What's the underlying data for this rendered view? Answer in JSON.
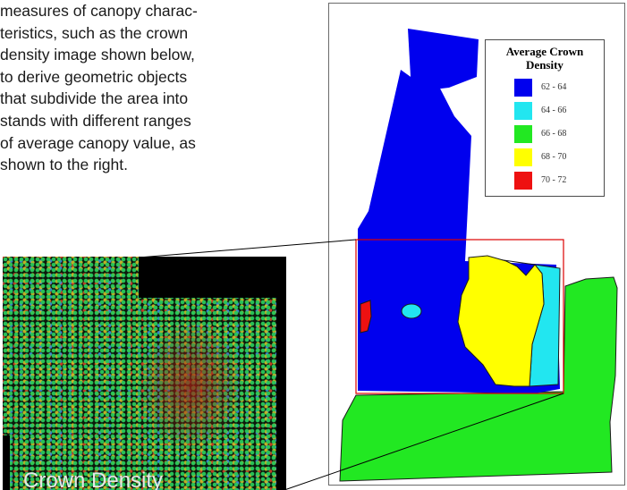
{
  "paragraph_lines": [
    "measures of canopy charac-",
    "teristics, such as the crown",
    "density image shown below,",
    "to derive geometric objects",
    "that subdivide the area into",
    "stands with different ranges",
    "of average canopy value, as",
    "shown to the right."
  ],
  "photo": {
    "label": "Crown Density"
  },
  "legend": {
    "title_line1": "Average Crown",
    "title_line2": "Density",
    "items": [
      {
        "label": "62 - 64",
        "color": "#0000ee"
      },
      {
        "label": "64 - 66",
        "color": "#22e6f0"
      },
      {
        "label": "66 - 68",
        "color": "#22e822"
      },
      {
        "label": "68 - 70",
        "color": "#ffff00"
      },
      {
        "label": "70 - 72",
        "color": "#ee1111"
      }
    ]
  },
  "colors": {
    "zoom_box": "#dd0000",
    "line": "#000000"
  }
}
